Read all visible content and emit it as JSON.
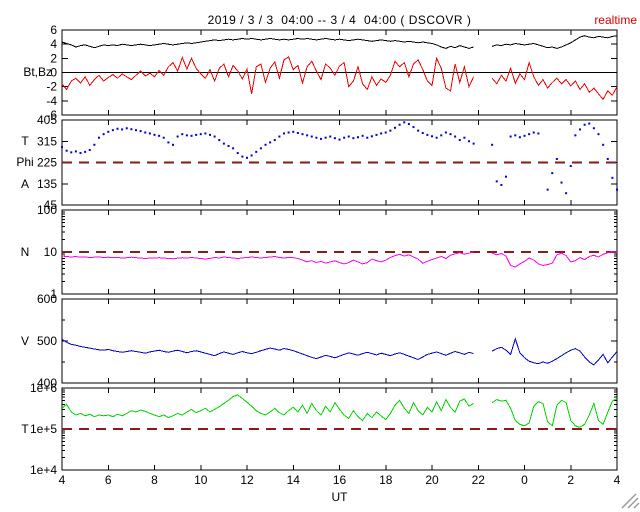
{
  "header": {
    "title": "2019 / 3 / 3  04:00 -- 3 / 4  04:00 ( DSCOVR )",
    "status": "realtime"
  },
  "panel_labels": {
    "p1": "Bt,Bz",
    "p2": [
      "T",
      "Phi",
      "A"
    ],
    "p3": "N",
    "p4": "V",
    "p5": "T"
  },
  "colors": {
    "bt": "#000000",
    "bz": "#ee0000",
    "phi": "#0000cc",
    "n": "#ff00ff",
    "v": "#0000cc",
    "t": "#00d300",
    "threshold": "#8b1a1a",
    "realtime": "#dd0000",
    "axis": "#000000",
    "resize": "#999999"
  },
  "xaxis": {
    "label": "UT",
    "range": [
      4,
      28
    ],
    "tick_values": [
      4,
      6,
      8,
      10,
      12,
      14,
      16,
      18,
      20,
      22,
      24,
      26,
      28
    ],
    "tick_labels": [
      "4",
      "6",
      "8",
      "10",
      "12",
      "14",
      "16",
      "18",
      "20",
      "22",
      "0",
      "2",
      "4"
    ]
  },
  "chart_data": [
    {
      "type": "line",
      "panel": "bt_bz",
      "ylabel": "Bt,Bz",
      "yscale": "linear",
      "ylim": [
        -6,
        6
      ],
      "ytick_values": [
        6,
        4,
        2,
        0,
        -2,
        -4,
        -6
      ],
      "ytick_labels": [
        "6",
        "4",
        "2",
        "0",
        "-2",
        "-4",
        "-6"
      ],
      "ytick_minor": [],
      "zero_line": 0,
      "x": {
        "start": 4,
        "step": 0.2
      },
      "series": [
        {
          "name": "Bt",
          "color": "#000000",
          "values": [
            4.3,
            4.1,
            3.9,
            3.6,
            3.8,
            3.9,
            3.7,
            3.5,
            3.7,
            3.9,
            3.8,
            3.9,
            3.8,
            4.0,
            3.9,
            3.8,
            3.9,
            4.0,
            3.9,
            3.8,
            3.9,
            4.0,
            4.1,
            4.0,
            3.9,
            4.0,
            4.1,
            4.2,
            4.1,
            4.2,
            4.3,
            4.4,
            4.5,
            4.6,
            4.5,
            4.6,
            4.7,
            4.6,
            4.7,
            4.8,
            4.7,
            4.8,
            4.7,
            4.6,
            4.7,
            4.8,
            4.7,
            4.6,
            4.7,
            4.6,
            4.7,
            4.8,
            4.7,
            4.8,
            4.7,
            4.6,
            4.7,
            4.8,
            4.7,
            4.6,
            4.7,
            4.6,
            4.5,
            4.6,
            4.7,
            4.6,
            4.5,
            4.4,
            4.5,
            4.6,
            4.5,
            4.4,
            4.5,
            4.4,
            4.3,
            4.4,
            4.3,
            4.2,
            4.3,
            4.2,
            4.1,
            3.9,
            3.6,
            3.4,
            3.7,
            3.5,
            3.8,
            3.6,
            3.4,
            3.6,
            null,
            null,
            null,
            3.7,
            3.9,
            3.8,
            4.0,
            3.9,
            4.1,
            4.0,
            3.9,
            4.0,
            4.1,
            3.9,
            3.7,
            3.5,
            3.6,
            3.4,
            3.6,
            3.9,
            4.2,
            4.6,
            5.0,
            5.2,
            5.0,
            4.9,
            5.1,
            5.0,
            4.9,
            5.1,
            5.2
          ]
        },
        {
          "name": "Bz",
          "color": "#ee0000",
          "values": [
            -1.6,
            -2.4,
            -1.2,
            -0.8,
            -1.5,
            -0.6,
            -1.8,
            -1.0,
            -0.4,
            -1.2,
            -0.7,
            -0.3,
            -0.8,
            -0.2,
            -0.6,
            -1.0,
            -0.4,
            0.2,
            -0.5,
            -0.1,
            -0.6,
            0.3,
            -0.4,
            0.8,
            1.4,
            0.2,
            2.1,
            0.5,
            2.0,
            0.6,
            -0.2,
            -0.8,
            0.4,
            -1.2,
            0.6,
            1.2,
            -0.6,
            1.0,
            0.2,
            -0.9,
            0.5,
            -3.0,
            0.8,
            1.2,
            -1.4,
            0.6,
            1.5,
            -0.8,
            1.8,
            2.2,
            0.4,
            1.0,
            -1.5,
            0.8,
            1.6,
            0.2,
            -1.0,
            1.2,
            0.6,
            -0.4,
            0.9,
            1.4,
            -2.0,
            -1.2,
            0.8,
            -1.6,
            -2.4,
            -0.6,
            -1.8,
            -0.9,
            -1.4,
            -0.4,
            1.6,
            0.8,
            1.4,
            -0.6,
            1.2,
            1.8,
            0.4,
            -1.2,
            -1.8,
            2.0,
            0.6,
            -2.2,
            -2.6,
            1.2,
            -1.4,
            0.8,
            -2.0,
            -0.6,
            null,
            null,
            null,
            -0.8,
            -1.6,
            -0.4,
            -1.2,
            0.6,
            -1.5,
            -0.2,
            -1.0,
            1.4,
            -0.6,
            -1.8,
            -1.0,
            -2.2,
            -1.4,
            -0.8,
            -1.6,
            -1.0,
            -1.9,
            -1.2,
            -2.4,
            -1.6,
            -2.8,
            -2.2,
            -3.0,
            -3.8,
            -2.6,
            -3.2,
            -2.0
          ]
        }
      ]
    },
    {
      "type": "scatter",
      "panel": "phi",
      "ylabel": "T / Phi / A",
      "yscale": "linear",
      "ylim": [
        45,
        405
      ],
      "ytick_values": [
        405,
        315,
        225,
        135,
        45
      ],
      "ytick_labels": [
        "405",
        "315",
        "225",
        "135",
        "45"
      ],
      "ytick_minor": [],
      "threshold": 225,
      "x": {
        "start": 4,
        "step": 0.2
      },
      "series": [
        {
          "name": "Phi",
          "color": "#0000cc",
          "values": [
            290,
            275,
            268,
            272,
            265,
            270,
            278,
            300,
            330,
            345,
            355,
            362,
            368,
            365,
            370,
            366,
            362,
            358,
            352,
            348,
            342,
            338,
            330,
            310,
            300,
            335,
            345,
            340,
            338,
            342,
            345,
            348,
            342,
            335,
            320,
            305,
            295,
            285,
            265,
            250,
            245,
            255,
            270,
            285,
            300,
            310,
            320,
            335,
            348,
            352,
            355,
            350,
            345,
            340,
            335,
            330,
            325,
            330,
            335,
            328,
            322,
            330,
            335,
            328,
            332,
            338,
            330,
            336,
            342,
            348,
            352,
            360,
            372,
            385,
            395,
            388,
            375,
            360,
            350,
            342,
            336,
            330,
            340,
            352,
            345,
            335,
            320,
            330,
            315,
            305,
            null,
            null,
            null,
            300,
            145,
            130,
            165,
            335,
            340,
            332,
            338,
            345,
            352,
            348,
            null,
            110,
            180,
            240,
            140,
            95,
            210,
            340,
            365,
            385,
            390,
            370,
            345,
            300,
            240,
            160,
            110
          ]
        }
      ]
    },
    {
      "type": "line",
      "panel": "density",
      "ylabel": "N",
      "yscale": "log",
      "ylim": [
        1,
        100
      ],
      "ytick_values": [
        100,
        10,
        1
      ],
      "ytick_labels": [
        "100",
        "10",
        "1"
      ],
      "ytick_minor": [
        2,
        3,
        4,
        5,
        6,
        7,
        8,
        9,
        20,
        30,
        40,
        50,
        60,
        70,
        80,
        90
      ],
      "threshold": 10,
      "x": {
        "start": 4,
        "step": 0.2
      },
      "series": [
        {
          "name": "N",
          "color": "#ff00ff",
          "values": [
            8.0,
            7.8,
            7.6,
            7.8,
            7.5,
            7.6,
            7.4,
            7.5,
            7.6,
            7.4,
            7.5,
            7.3,
            7.4,
            7.2,
            7.3,
            7.5,
            7.3,
            7.2,
            7.0,
            7.2,
            7.1,
            7.3,
            7.2,
            7.0,
            6.9,
            7.1,
            7.3,
            7.2,
            7.4,
            7.2,
            7.0,
            6.8,
            7.0,
            7.4,
            7.2,
            7.6,
            7.4,
            7.2,
            7.0,
            7.2,
            7.4,
            7.6,
            7.4,
            7.2,
            7.4,
            7.6,
            7.8,
            7.4,
            7.2,
            7.4,
            7.3,
            7.0,
            6.4,
            5.8,
            6.2,
            5.6,
            6.0,
            5.4,
            5.8,
            6.2,
            5.6,
            5.2,
            5.6,
            6.4,
            5.8,
            5.2,
            5.6,
            6.8,
            6.2,
            5.8,
            6.4,
            7.4,
            8.2,
            8.8,
            8.0,
            8.6,
            7.6,
            6.8,
            5.4,
            6.0,
            6.6,
            7.2,
            7.8,
            7.0,
            8.4,
            9.0,
            9.6,
            8.8,
            9.4,
            10.0,
            null,
            null,
            null,
            9.4,
            8.6,
            9.2,
            8.0,
            4.8,
            4.4,
            5.2,
            6.0,
            7.2,
            6.4,
            5.2,
            4.8,
            5.0,
            5.4,
            8.6,
            9.4,
            8.2,
            5.8,
            6.2,
            7.4,
            6.6,
            7.8,
            8.4,
            7.6,
            8.8,
            9.6,
            10.2,
            9.8
          ]
        }
      ]
    },
    {
      "type": "line",
      "panel": "velocity",
      "ylabel": "V",
      "yscale": "linear",
      "ylim": [
        400,
        600
      ],
      "ytick_values": [
        600,
        500,
        400
      ],
      "ytick_labels": [
        "600",
        "500",
        "400"
      ],
      "ytick_minor": [
        450,
        550
      ],
      "x": {
        "start": 4,
        "step": 0.2
      },
      "series": [
        {
          "name": "V",
          "color": "#0000cc",
          "values": [
            504,
            497,
            492,
            490,
            487,
            485,
            483,
            481,
            479,
            478,
            480,
            477,
            475,
            473,
            475,
            477,
            475,
            473,
            471,
            474,
            476,
            478,
            475,
            473,
            476,
            478,
            475,
            472,
            475,
            477,
            474,
            471,
            468,
            465,
            470,
            474,
            471,
            468,
            472,
            475,
            472,
            470,
            473,
            477,
            480,
            483,
            481,
            478,
            482,
            480,
            477,
            473,
            469,
            465,
            461,
            458,
            462,
            466,
            463,
            460,
            464,
            468,
            472,
            469,
            466,
            470,
            473,
            470,
            467,
            471,
            468,
            465,
            469,
            472,
            468,
            464,
            460,
            456,
            462,
            468,
            471,
            474,
            470,
            466,
            471,
            475,
            472,
            468,
            473,
            470,
            null,
            null,
            null,
            476,
            482,
            485,
            478,
            468,
            505,
            472,
            460,
            452,
            448,
            446,
            450,
            447,
            452,
            458,
            465,
            472,
            478,
            482,
            476,
            462,
            450,
            443,
            455,
            468,
            448,
            462,
            475
          ]
        }
      ]
    },
    {
      "type": "line",
      "panel": "temperature",
      "ylabel": "T",
      "yscale": "log",
      "ylim": [
        10000,
        1000000
      ],
      "ytick_values": [
        1000000,
        100000,
        10000
      ],
      "ytick_labels": [
        "1e+6",
        "1e+5",
        "1e+4"
      ],
      "ytick_minor": [
        20000,
        30000,
        40000,
        50000,
        60000,
        70000,
        80000,
        90000,
        200000,
        300000,
        400000,
        500000,
        600000,
        700000,
        800000,
        900000
      ],
      "threshold": 100000,
      "x": {
        "start": 4,
        "step": 0.2
      },
      "series": [
        {
          "name": "T",
          "color": "#00d300",
          "values": [
            320000,
            400000,
            260000,
            220000,
            240000,
            210000,
            230000,
            200000,
            220000,
            210000,
            220000,
            200000,
            230000,
            210000,
            240000,
            280000,
            260000,
            290000,
            270000,
            240000,
            220000,
            200000,
            220000,
            190000,
            210000,
            240000,
            220000,
            260000,
            300000,
            250000,
            280000,
            320000,
            260000,
            300000,
            350000,
            420000,
            500000,
            620000,
            680000,
            550000,
            450000,
            360000,
            280000,
            240000,
            220000,
            260000,
            320000,
            250000,
            220000,
            280000,
            340000,
            260000,
            380000,
            240000,
            420000,
            280000,
            220000,
            360000,
            260000,
            440000,
            300000,
            220000,
            180000,
            280000,
            200000,
            160000,
            240000,
            190000,
            260000,
            210000,
            170000,
            240000,
            380000,
            500000,
            320000,
            240000,
            440000,
            280000,
            220000,
            340000,
            260000,
            460000,
            280000,
            520000,
            340000,
            260000,
            480000,
            540000,
            360000,
            420000,
            null,
            null,
            null,
            440000,
            520000,
            480000,
            500000,
            320000,
            160000,
            130000,
            120000,
            140000,
            360000,
            460000,
            420000,
            150000,
            120000,
            380000,
            500000,
            440000,
            160000,
            120000,
            110000,
            130000,
            220000,
            420000,
            160000,
            130000,
            260000,
            480000,
            560000
          ]
        }
      ]
    }
  ]
}
